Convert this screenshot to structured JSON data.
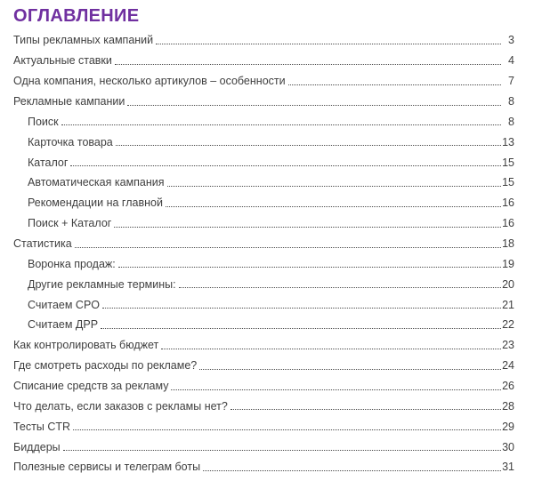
{
  "title": "ОГЛАВЛЕНИЕ",
  "colors": {
    "accent_purple": "#7030A0",
    "entry_text": "#3F3F3F",
    "dot_leader": "#4A4A4A",
    "background": "#FFFFFF"
  },
  "toc": {
    "entries": [
      {
        "label": "Типы рекламных кампаний",
        "page": "3",
        "level": 1
      },
      {
        "label": "Актуальные ставки",
        "page": "4",
        "level": 1
      },
      {
        "label": "Одна компания, несколько артикулов – особенности",
        "page": "7",
        "level": 1
      },
      {
        "label": "Рекламные кампании",
        "page": "8",
        "level": 1
      },
      {
        "label": "Поиск",
        "page": "8",
        "level": 2
      },
      {
        "label": "Карточка товара",
        "page": "13",
        "level": 2
      },
      {
        "label": "Каталог",
        "page": "15",
        "level": 2
      },
      {
        "label": "Автоматическая кампания",
        "page": "15",
        "level": 2
      },
      {
        "label": "Рекомендации на главной",
        "page": "16",
        "level": 2
      },
      {
        "label": "Поиск + Каталог",
        "page": "16",
        "level": 2
      },
      {
        "label": "Статистика",
        "page": "18",
        "level": 1
      },
      {
        "label": "Воронка продаж:",
        "page": "19",
        "level": 2
      },
      {
        "label": "Другие рекламные термины:",
        "page": "20",
        "level": 2
      },
      {
        "label": "Считаем CPO",
        "page": "21",
        "level": 2
      },
      {
        "label": "Считаем ДРР",
        "page": "22",
        "level": 2
      },
      {
        "label": "Как контролировать бюджет",
        "page": "23",
        "level": 1
      },
      {
        "label": "Где смотреть расходы по рекламе?",
        "page": "24",
        "level": 1
      },
      {
        "label": "Списание средств за рекламу",
        "page": "26",
        "level": 1
      },
      {
        "label": "Что делать, если заказов с рекламы нет?",
        "page": "28",
        "level": 1
      },
      {
        "label": "Тесты CTR",
        "page": "29",
        "level": 1
      },
      {
        "label": "Биддеры",
        "page": "30",
        "level": 1
      },
      {
        "label": "Полезные сервисы и телеграм боты",
        "page": "31",
        "level": 1
      }
    ]
  }
}
